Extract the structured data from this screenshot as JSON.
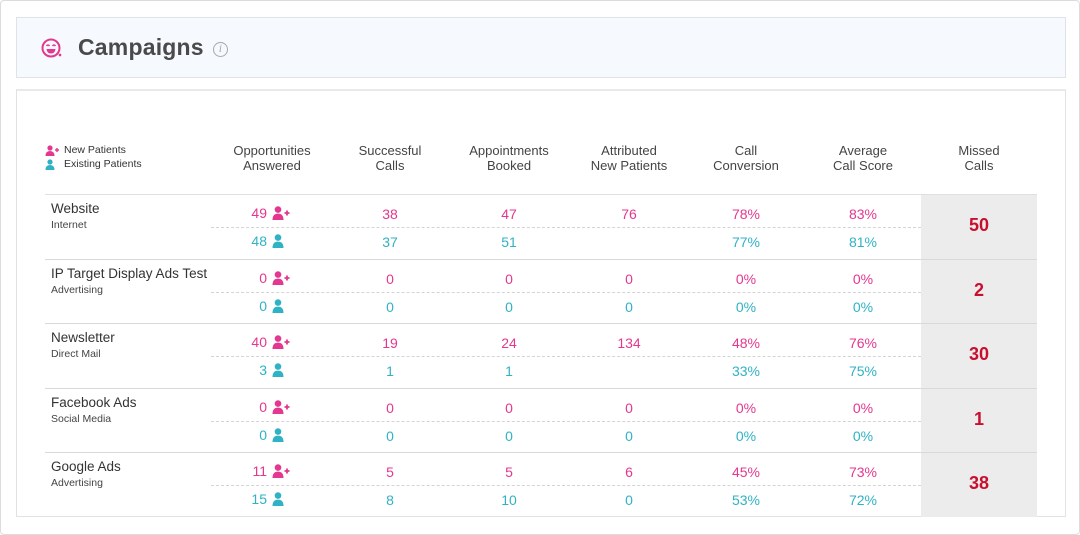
{
  "header": {
    "title": "Campaigns",
    "info_label": "i"
  },
  "legend": {
    "new_label": "New Patients",
    "existing_label": "Existing Patients"
  },
  "columns": [
    {
      "line1": "Opportunities",
      "line2": "Answered"
    },
    {
      "line1": "Successful",
      "line2": "Calls"
    },
    {
      "line1": "Appointments",
      "line2": "Booked"
    },
    {
      "line1": "Attributed",
      "line2": "New Patients"
    },
    {
      "line1": "Call",
      "line2": "Conversion"
    },
    {
      "line1": "Average",
      "line2": "Call Score"
    },
    {
      "line1": "Missed",
      "line2": "Calls"
    }
  ],
  "campaigns": [
    {
      "name": "Website",
      "type": "Internet",
      "new": [
        "49",
        "38",
        "47",
        "76",
        "78%",
        "83%"
      ],
      "existing": [
        "48",
        "37",
        "51",
        "",
        "77%",
        "81%"
      ],
      "missed": "50"
    },
    {
      "name": "IP Target Display Ads Test",
      "type": "Advertising",
      "new": [
        "0",
        "0",
        "0",
        "0",
        "0%",
        "0%"
      ],
      "existing": [
        "0",
        "0",
        "0",
        "0",
        "0%",
        "0%"
      ],
      "missed": "2"
    },
    {
      "name": "Newsletter",
      "type": "Direct Mail",
      "new": [
        "40",
        "19",
        "24",
        "134",
        "48%",
        "76%"
      ],
      "existing": [
        "3",
        "1",
        "1",
        "",
        "33%",
        "75%"
      ],
      "missed": "30"
    },
    {
      "name": "Facebook Ads",
      "type": "Social Media",
      "new": [
        "0",
        "0",
        "0",
        "0",
        "0%",
        "0%"
      ],
      "existing": [
        "0",
        "0",
        "0",
        "0",
        "0%",
        "0%"
      ],
      "missed": "1"
    },
    {
      "name": "Google Ads",
      "type": "Advertising",
      "new": [
        "11",
        "5",
        "5",
        "6",
        "45%",
        "73%"
      ],
      "existing": [
        "15",
        "8",
        "10",
        "0",
        "53%",
        "72%"
      ],
      "missed": "38"
    }
  ],
  "colors": {
    "new": "#e4378f",
    "existing": "#30b2c5",
    "missed": "#c8102e"
  },
  "icons": {
    "header": "smiley-icon",
    "new_patient": "user-plus-icon",
    "existing_patient": "user-icon",
    "info": "info-icon"
  }
}
